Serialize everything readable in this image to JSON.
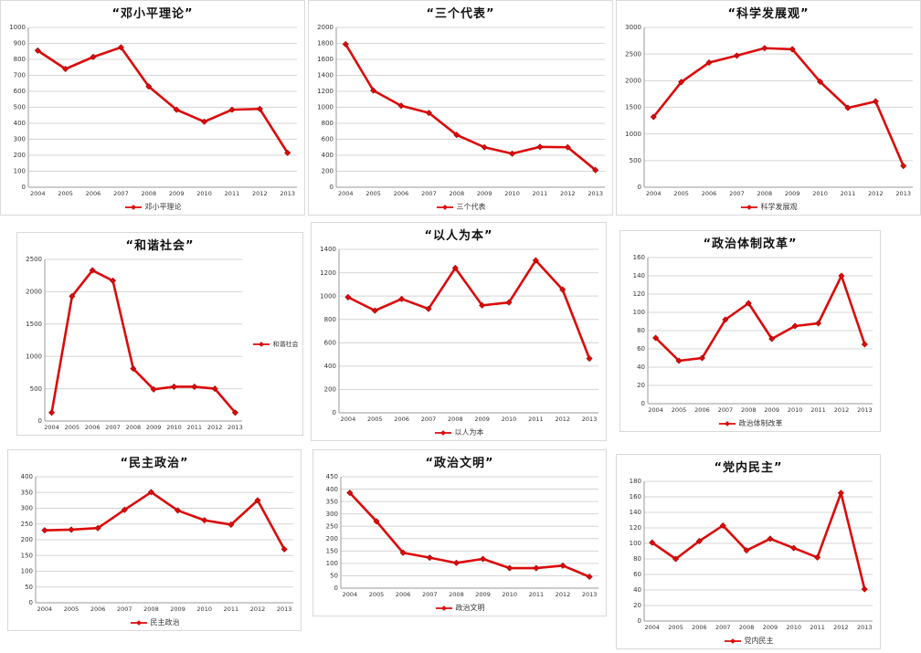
{
  "page": {
    "background": "#ffffff"
  },
  "colors": {
    "line": "#dc0a0a",
    "marker_edge": "#a00000",
    "grid": "#d4d4d4",
    "axis": "#9a9a9a",
    "tick_text": "#333333",
    "panel_border": "#d9d9d9"
  },
  "chart_data": [
    {
      "type": "line",
      "title": "“邓小平理论”",
      "legend": "邓小平理论",
      "legend_position": "bottom",
      "categories": [
        "2004",
        "2005",
        "2006",
        "2007",
        "2008",
        "2009",
        "2010",
        "2011",
        "2012",
        "2013"
      ],
      "values": [
        855,
        740,
        815,
        875,
        630,
        485,
        410,
        485,
        490,
        215
      ],
      "ylim": [
        0,
        1000
      ],
      "ytick_step": 100,
      "grid": true
    },
    {
      "type": "line",
      "title": "“三个代表”",
      "legend": "三个代表",
      "legend_position": "bottom",
      "categories": [
        "2004",
        "2005",
        "2006",
        "2007",
        "2008",
        "2009",
        "2010",
        "2011",
        "2012",
        "2013"
      ],
      "values": [
        1790,
        1210,
        1020,
        930,
        655,
        500,
        420,
        505,
        500,
        215
      ],
      "ylim": [
        0,
        2000
      ],
      "ytick_step": 200,
      "grid": true
    },
    {
      "type": "line",
      "title": "“科学发展观”",
      "legend": "科学发展观",
      "legend_position": "bottom",
      "categories": [
        "2004",
        "2005",
        "2006",
        "2007",
        "2008",
        "2009",
        "2010",
        "2011",
        "2012",
        "2013"
      ],
      "values": [
        1320,
        1975,
        2340,
        2470,
        2610,
        2590,
        1980,
        1490,
        1610,
        400
      ],
      "ylim": [
        0,
        3000
      ],
      "ytick_step": 500,
      "grid": true
    },
    {
      "type": "line",
      "title": "“和谐社会”",
      "legend": "和谐社会",
      "legend_position": "right",
      "categories": [
        "2004",
        "2005",
        "2006",
        "2007",
        "2008",
        "2009",
        "2010",
        "2011",
        "2012",
        "2013"
      ],
      "values": [
        130,
        1930,
        2330,
        2170,
        810,
        490,
        530,
        530,
        500,
        130
      ],
      "ylim": [
        0,
        2500
      ],
      "ytick_step": 500,
      "grid": true
    },
    {
      "type": "line",
      "title": "“以人为本”",
      "legend": "以人为本",
      "legend_position": "bottom",
      "categories": [
        "2004",
        "2005",
        "2006",
        "2007",
        "2008",
        "2009",
        "2010",
        "2011",
        "2012",
        "2013"
      ],
      "values": [
        990,
        875,
        975,
        890,
        1240,
        920,
        945,
        1305,
        1055,
        465
      ],
      "ylim": [
        0,
        1400
      ],
      "ytick_step": 200,
      "grid": true
    },
    {
      "type": "line",
      "title": "“政治体制改革”",
      "legend": "政治体制改革",
      "legend_position": "bottom",
      "categories": [
        "2004",
        "2005",
        "2006",
        "2007",
        "2008",
        "2009",
        "2010",
        "2011",
        "2012",
        "2013"
      ],
      "values": [
        72,
        47,
        50,
        92,
        110,
        71,
        85,
        88,
        140,
        65
      ],
      "ylim": [
        0,
        160
      ],
      "ytick_step": 20,
      "grid": true
    },
    {
      "type": "line",
      "title": "“民主政治”",
      "legend": "民主政治",
      "legend_position": "bottom",
      "categories": [
        "2004",
        "2005",
        "2006",
        "2007",
        "2008",
        "2009",
        "2010",
        "2011",
        "2012",
        "2013"
      ],
      "values": [
        230,
        232,
        237,
        295,
        351,
        293,
        262,
        248,
        325,
        170
      ],
      "ylim": [
        0,
        400
      ],
      "ytick_step": 50,
      "grid": true
    },
    {
      "type": "line",
      "title": "“政治文明”",
      "legend": "政治文明",
      "legend_position": "bottom",
      "categories": [
        "2004",
        "2005",
        "2006",
        "2007",
        "2008",
        "2009",
        "2010",
        "2011",
        "2012",
        "2013"
      ],
      "values": [
        385,
        270,
        143,
        123,
        102,
        118,
        81,
        81,
        91,
        46
      ],
      "ylim": [
        0,
        450
      ],
      "ytick_step": 50,
      "grid": true
    },
    {
      "type": "line",
      "title": "“党内民主”",
      "legend": "党内民主",
      "legend_position": "bottom",
      "categories": [
        "2004",
        "2005",
        "2006",
        "2007",
        "2008",
        "2009",
        "2010",
        "2011",
        "2012",
        "2013"
      ],
      "values": [
        101,
        80,
        103,
        123,
        91,
        106,
        94,
        82,
        165,
        41
      ],
      "ylim": [
        0,
        180
      ],
      "ytick_step": 20,
      "grid": true
    }
  ]
}
